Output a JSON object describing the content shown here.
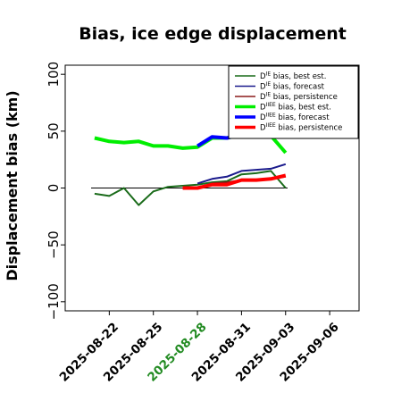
{
  "chart_data": {
    "type": "line",
    "title": "Bias, ice edge displacement",
    "ylabel": "Displacement bias (km)",
    "xlabel": "",
    "xlim": [
      "2025-08-19",
      "2025-09-08"
    ],
    "ylim": [
      -108,
      108
    ],
    "yticks": [
      -100,
      -50,
      0,
      50,
      100
    ],
    "yticklabels": [
      "−100",
      "−50",
      "0",
      "50",
      "100"
    ],
    "xticks": [
      "2025-08-22",
      "2025-08-25",
      "2025-08-28",
      "2025-08-31",
      "2025-09-03",
      "2025-09-06"
    ],
    "highlight_xtick": "2025-08-28",
    "highlight_color": "#228b22",
    "reference_line": 0,
    "grid": false,
    "legend_position": "top-right",
    "series": [
      {
        "name": "D^IE bias, best est.",
        "legend_main": "D",
        "legend_sup": "IE",
        "legend_rest": " bias, best est.",
        "color": "#1a6b1a",
        "width": 2,
        "x": [
          "2025-08-21",
          "2025-08-22",
          "2025-08-23",
          "2025-08-24",
          "2025-08-25",
          "2025-08-26",
          "2025-08-27",
          "2025-08-28",
          "2025-08-29",
          "2025-08-30",
          "2025-08-31",
          "2025-09-01",
          "2025-09-02",
          "2025-09-03"
        ],
        "y": [
          -5,
          -7,
          0,
          -15,
          -3,
          1,
          2,
          3,
          5,
          6,
          12,
          13,
          15,
          0
        ]
      },
      {
        "name": "D^IE bias, forecast",
        "legend_main": "D",
        "legend_sup": "IE",
        "legend_rest": " bias, forecast",
        "color": "#1a1a8c",
        "width": 2,
        "x": [
          "2025-08-28",
          "2025-08-29",
          "2025-08-30",
          "2025-08-31",
          "2025-09-01",
          "2025-09-02",
          "2025-09-03"
        ],
        "y": [
          4,
          8,
          10,
          15,
          16,
          17,
          21
        ]
      },
      {
        "name": "D^IE bias, persistence",
        "legend_main": "D",
        "legend_sup": "IE",
        "legend_rest": " bias, persistence",
        "color": "#8b1a1a",
        "width": 2,
        "x": [
          "2025-08-27",
          "2025-08-28",
          "2025-08-29",
          "2025-08-30",
          "2025-08-31",
          "2025-09-01",
          "2025-09-02",
          "2025-09-03"
        ],
        "y": [
          0,
          0,
          4,
          5,
          7,
          7,
          8,
          10
        ]
      },
      {
        "name": "D^IIEE bias, best est.",
        "legend_main": "D",
        "legend_sup": "IIEE",
        "legend_rest": " bias, best est.",
        "color": "#00ee00",
        "width": 4,
        "x": [
          "2025-08-21",
          "2025-08-22",
          "2025-08-23",
          "2025-08-24",
          "2025-08-25",
          "2025-08-26",
          "2025-08-27",
          "2025-08-28",
          "2025-08-29",
          "2025-08-30",
          "2025-08-31",
          "2025-09-01",
          "2025-09-02",
          "2025-09-03"
        ],
        "y": [
          44,
          41,
          40,
          41,
          37,
          37,
          35,
          36,
          44,
          44,
          47,
          48,
          46,
          31
        ]
      },
      {
        "name": "D^IIEE bias, forecast",
        "legend_main": "D",
        "legend_sup": "IIEE",
        "legend_rest": " bias, forecast",
        "color": "#0000ff",
        "width": 4,
        "x": [
          "2025-08-28",
          "2025-08-29",
          "2025-08-30",
          "2025-08-31"
        ],
        "y": [
          37,
          45,
          44,
          47
        ]
      },
      {
        "name": "D^IIEE bias, persistence",
        "legend_main": "D",
        "legend_sup": "IIEE",
        "legend_rest": " bias, persistence",
        "color": "#ff0000",
        "width": 4,
        "x": [
          "2025-08-27",
          "2025-08-28",
          "2025-08-29",
          "2025-08-30",
          "2025-08-31",
          "2025-09-01",
          "2025-09-02",
          "2025-09-03"
        ],
        "y": [
          0,
          0,
          3,
          3,
          7,
          7,
          8,
          11
        ]
      }
    ]
  }
}
